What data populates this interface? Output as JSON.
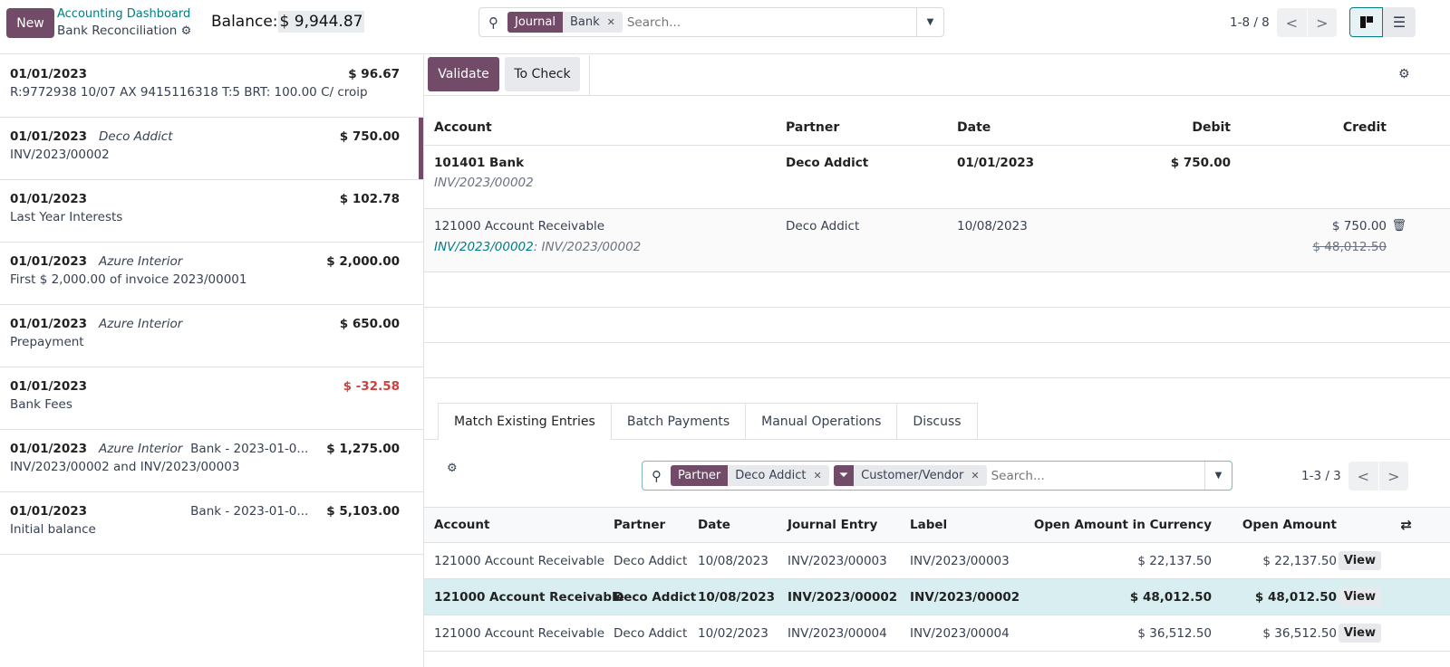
{
  "topbar": {
    "new_label": "New",
    "breadcrumb_parent": "Accounting Dashboard",
    "breadcrumb_current": "Bank Reconciliation",
    "balance_label": "Balance:",
    "balance_value": "$ 9,944.87",
    "search": {
      "facet_key": "Journal",
      "facet_value": "Bank",
      "placeholder": "Search..."
    },
    "pager": "1-8 / 8"
  },
  "colors": {
    "primary": "#714B67",
    "accent": "#017E84",
    "negative": "#d23f3a",
    "highlight": "#d8eef0"
  },
  "statements": [
    {
      "date": "01/01/2023",
      "partner": "",
      "journal": "",
      "amount": "$ 96.67",
      "label": "R:9772938 10/07 AX 9415116318 T:5 BRT: 100.00 C/ croip",
      "negative": false,
      "selected": false
    },
    {
      "date": "01/01/2023",
      "partner": "Deco Addict",
      "journal": "",
      "amount": "$ 750.00",
      "label": "INV/2023/00002",
      "negative": false,
      "selected": true
    },
    {
      "date": "01/01/2023",
      "partner": "",
      "journal": "",
      "amount": "$ 102.78",
      "label": "Last Year Interests",
      "negative": false,
      "selected": false
    },
    {
      "date": "01/01/2023",
      "partner": "Azure Interior",
      "journal": "",
      "amount": "$ 2,000.00",
      "label": "First $ 2,000.00 of invoice 2023/00001",
      "negative": false,
      "selected": false
    },
    {
      "date": "01/01/2023",
      "partner": "Azure Interior",
      "journal": "",
      "amount": "$ 650.00",
      "label": "Prepayment",
      "negative": false,
      "selected": false
    },
    {
      "date": "01/01/2023",
      "partner": "",
      "journal": "",
      "amount": "$ -32.58",
      "label": "Bank Fees",
      "negative": true,
      "selected": false
    },
    {
      "date": "01/01/2023",
      "partner": "Azure Interior",
      "journal": "Bank - 2023-01-0...",
      "amount": "$ 1,275.00",
      "label": "INV/2023/00002 and INV/2023/00003",
      "negative": false,
      "selected": false
    },
    {
      "date": "01/01/2023",
      "partner": "",
      "journal": "Bank - 2023-01-0...",
      "amount": "$ 5,103.00",
      "label": "Initial balance",
      "negative": false,
      "selected": false
    }
  ],
  "toolbar": {
    "validate": "Validate",
    "to_check": "To Check"
  },
  "entries": {
    "headers": [
      "Account",
      "Partner",
      "Date",
      "Debit",
      "Credit"
    ],
    "line1": {
      "account": "101401 Bank",
      "sub": "INV/2023/00002",
      "partner": "Deco Addict",
      "date": "01/01/2023",
      "debit": "$ 750.00"
    },
    "line2": {
      "account": "121000 Account Receivable",
      "sub_link": "INV/2023/00002",
      "sub_rest": ": INV/2023/00002",
      "partner": "Deco Addict",
      "date": "10/08/2023",
      "credit": "$ 750.00",
      "credit_old": "$ 48,012.50"
    }
  },
  "tabs": [
    "Match Existing Entries",
    "Batch Payments",
    "Manual Operations",
    "Discuss"
  ],
  "match": {
    "search": {
      "facet1_key": "Partner",
      "facet1_value": "Deco Addict",
      "facet2_value": "Customer/Vendor",
      "placeholder": "Search..."
    },
    "pager": "1-3 / 3",
    "headers": [
      "Account",
      "Partner",
      "Date",
      "Journal Entry",
      "Label",
      "Open Amount in Currency",
      "Open Amount"
    ],
    "rows": [
      {
        "account": "121000 Account Receivable",
        "partner": "Deco Addict",
        "date": "10/08/2023",
        "entry": "INV/2023/00003",
        "label": "INV/2023/00003",
        "cur": "$ 22,137.50",
        "open": "$ 22,137.50",
        "view": "View",
        "hl": false
      },
      {
        "account": "121000 Account Receivable",
        "partner": "Deco Addict",
        "date": "10/08/2023",
        "entry": "INV/2023/00002",
        "label": "INV/2023/00002",
        "cur": "$ 48,012.50",
        "open": "$ 48,012.50",
        "view": "View",
        "hl": true
      },
      {
        "account": "121000 Account Receivable",
        "partner": "Deco Addict",
        "date": "10/02/2023",
        "entry": "INV/2023/00004",
        "label": "INV/2023/00004",
        "cur": "$ 36,512.50",
        "open": "$ 36,512.50",
        "view": "View",
        "hl": false
      }
    ]
  }
}
